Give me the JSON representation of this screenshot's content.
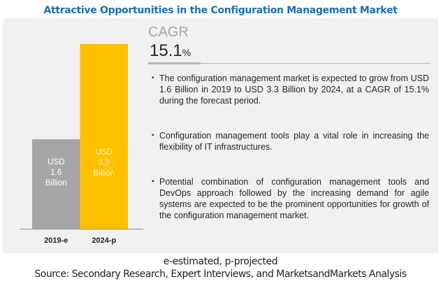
{
  "title": "Attractive Opportunities in the Configuration Management Market",
  "cagr": {
    "label": "CAGR",
    "value": "15.1",
    "unit": "%"
  },
  "bullets": [
    "The configuration management market is expected to grow from USD 1.6 Billion in 2019 to USD 3.3 Billion by 2024, at a CAGR of 15.1% during the forecast period.",
    "Configuration management tools play a vital role in increasing the flexibility of IT infrastructures.",
    "Potential combination of configuration management tools and DevOps approach followed by the increasing demand for agile systems are expected to be the prominent opportunities for growth of the configuration management market."
  ],
  "footnote": "e-estimated, p-projected",
  "source": "Source: Secondary Research, Expert Interviews, and MarketsandMarkets Analysis",
  "colors": {
    "title": "#1a6fb3",
    "bar_2019": "#a6a6a6",
    "bar_2024": "#ffc000"
  },
  "chart_data": {
    "type": "bar",
    "title": "Attractive Opportunities in the Configuration Management Market",
    "categories": [
      "2019-e",
      "2024-p"
    ],
    "values": [
      1.6,
      3.3
    ],
    "unit": "USD Billion",
    "data_labels": [
      [
        "USD",
        "1.6",
        "Billion"
      ],
      [
        "USD",
        "3.3",
        "Billion"
      ]
    ],
    "bar_colors": [
      "#a6a6a6",
      "#ffc000"
    ],
    "label_colors": [
      "#ffffff",
      "#fff2cc"
    ],
    "xlabel": "",
    "ylabel": "",
    "ylim": [
      0,
      3.3
    ],
    "grid": false,
    "legend": "none"
  }
}
